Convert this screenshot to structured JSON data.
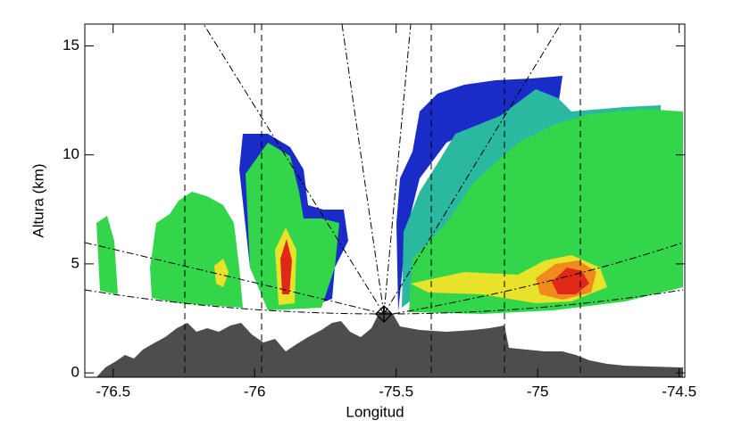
{
  "chart_data": {
    "type": "radar-cross-section",
    "x_label": "Longitud",
    "y_label": "Altura (km)",
    "xlim": [
      -76.6,
      -74.48
    ],
    "ylim": [
      -0.2,
      16
    ],
    "xticks": [
      -76.5,
      -76.0,
      -75.5,
      -75.0,
      -74.5
    ],
    "yticks": [
      0,
      5,
      10,
      15
    ]
  }
}
